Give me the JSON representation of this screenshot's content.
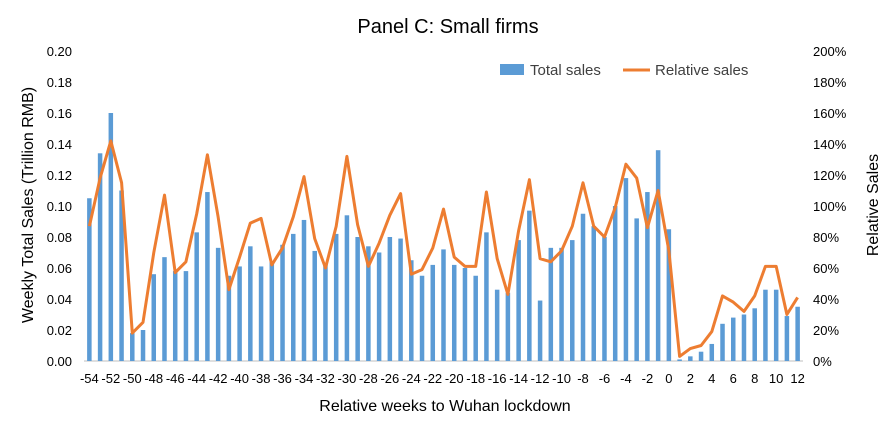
{
  "chart_data": {
    "type": "bar+line",
    "title": "Panel C: Small firms",
    "xlabel": "Relative weeks to Wuhan lockdown",
    "ylabel_left": "Weekly Total Sales (Trillion RMB)",
    "ylabel_right": "Relative Sales",
    "ylim_left": [
      0,
      0.2
    ],
    "ylim_right": [
      0,
      200
    ],
    "left_ticks": [
      "0.00",
      "0.02",
      "0.04",
      "0.06",
      "0.08",
      "0.10",
      "0.12",
      "0.14",
      "0.16",
      "0.18",
      "0.20"
    ],
    "right_ticks": [
      "0%",
      "20%",
      "40%",
      "60%",
      "80%",
      "100%",
      "120%",
      "140%",
      "160%",
      "180%",
      "200%"
    ],
    "x_tick_labels": [
      "-54",
      "-52",
      "-50",
      "-48",
      "-46",
      "-44",
      "-42",
      "-40",
      "-38",
      "-36",
      "-34",
      "-32",
      "-30",
      "-28",
      "-26",
      "-24",
      "-22",
      "-20",
      "-18",
      "-16",
      "-14",
      "-12",
      "-10",
      "-8",
      "-6",
      "-4",
      "-2",
      "0",
      "2",
      "4",
      "6",
      "8",
      "10",
      "12"
    ],
    "legend_position": "top-right",
    "x": [
      -54,
      -53,
      -52,
      -51,
      -50,
      -49,
      -48,
      -47,
      -46,
      -45,
      -44,
      -43,
      -42,
      -41,
      -40,
      -39,
      -38,
      -37,
      -36,
      -35,
      -34,
      -33,
      -32,
      -31,
      -30,
      -29,
      -28,
      -27,
      -26,
      -25,
      -24,
      -23,
      -22,
      -21,
      -20,
      -19,
      -18,
      -17,
      -16,
      -15,
      -14,
      -13,
      -12,
      -11,
      -10,
      -9,
      -8,
      -7,
      -6,
      -5,
      -4,
      -3,
      -2,
      -1,
      0,
      1,
      2,
      3,
      4,
      5,
      6,
      7,
      8,
      9,
      10,
      11,
      12
    ],
    "series": [
      {
        "name": "Total sales",
        "kind": "bar",
        "axis": "left",
        "color": "#5B9BD5",
        "values": [
          0.105,
          0.134,
          0.16,
          0.11,
          0.018,
          0.02,
          0.056,
          0.067,
          0.058,
          0.058,
          0.083,
          0.109,
          0.073,
          0.055,
          0.061,
          0.074,
          0.061,
          0.064,
          0.075,
          0.082,
          0.091,
          0.071,
          0.063,
          0.082,
          0.094,
          0.08,
          0.074,
          0.07,
          0.08,
          0.079,
          0.065,
          0.055,
          0.062,
          0.072,
          0.062,
          0.06,
          0.055,
          0.083,
          0.046,
          0.044,
          0.078,
          0.097,
          0.039,
          0.073,
          0.073,
          0.078,
          0.095,
          0.087,
          0.08,
          0.1,
          0.118,
          0.092,
          0.109,
          0.136,
          0.085,
          0.001,
          0.003,
          0.006,
          0.011,
          0.024,
          0.028,
          0.03,
          0.034,
          0.046,
          0.046,
          0.029,
          0.035
        ]
      },
      {
        "name": "Relative sales",
        "kind": "line",
        "axis": "right",
        "color": "#ED7D31",
        "values": [
          87,
          118,
          142,
          115,
          18,
          25,
          70,
          107,
          57,
          64,
          95,
          133,
          93,
          46,
          67,
          89,
          92,
          62,
          73,
          93,
          119,
          79,
          60,
          87,
          132,
          88,
          61,
          76,
          94,
          108,
          56,
          59,
          73,
          98,
          67,
          61,
          61,
          109,
          66,
          43,
          84,
          117,
          66,
          64,
          71,
          87,
          115,
          87,
          80,
          99,
          127,
          118,
          86,
          110,
          71,
          3,
          8,
          10,
          19,
          42,
          38,
          32,
          42,
          61,
          61,
          30,
          41
        ]
      }
    ]
  }
}
